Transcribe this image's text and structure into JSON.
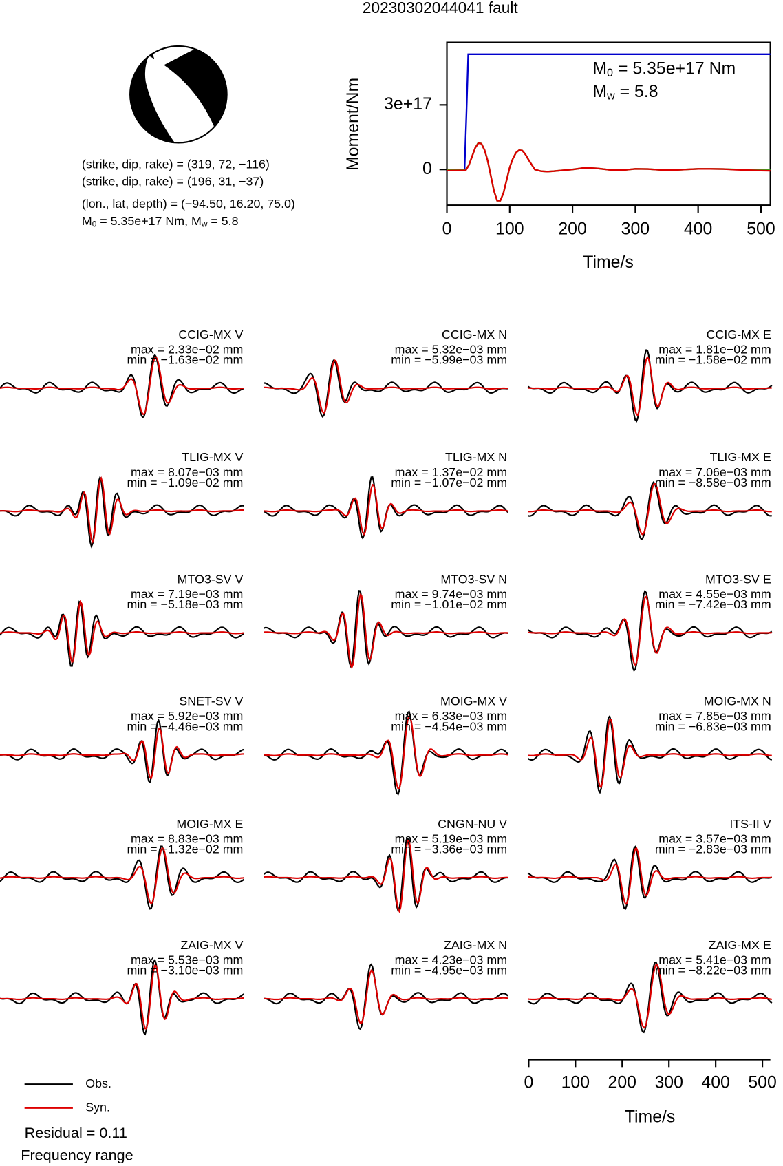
{
  "title": "20230302044041 fault",
  "mechanism": {
    "lines": [
      "(strike, dip, rake) = (319, 72, −116)",
      "(strike, dip, rake) = (196, 31, −37)",
      "(lon., lat, depth) = (−94.50, 16.20, 75.0)"
    ],
    "moment_line": {
      "m": "M",
      "m_sub": "0",
      "m_rest": " = 5.35e+17 Nm, ",
      "w": "M",
      "w_sub": "w",
      "w_rest": " = 5.8"
    }
  },
  "chart_data": {
    "type": "line",
    "ylabel": "Moment/Nm",
    "xlabel": "Time/s",
    "xlim": [
      0,
      515
    ],
    "ylim": [
      -1.66e+17,
      5.9e+17
    ],
    "xticks": [
      0,
      100,
      200,
      300,
      400,
      500
    ],
    "yticks": [
      0,
      {
        "value": 3e+17,
        "label": "3e+17"
      }
    ],
    "annotations": [
      {
        "main": "M",
        "sub": "0",
        "rest": " = 5.35e+17 Nm"
      },
      {
        "main": "M",
        "sub": "w",
        "rest": " = 5.8"
      }
    ],
    "series": [
      {
        "color": "#0000cc",
        "x": [
          0,
          28,
          31,
          34,
          515
        ],
        "values": [
          -5000000000000000.0,
          -5000000000000000.0,
          2.5e+17,
          5.35e+17,
          5.35e+17
        ]
      },
      {
        "color": "#22bb22",
        "x": [
          0,
          30,
          35,
          40,
          45,
          50,
          55,
          60,
          65,
          70,
          75,
          80,
          85,
          90,
          95,
          100,
          105,
          110,
          115,
          120,
          125,
          130,
          140,
          150,
          160,
          170,
          180,
          200,
          220,
          240,
          260,
          280,
          300,
          320,
          340,
          360,
          380,
          400,
          420,
          440,
          460,
          480,
          500,
          515
        ],
        "values": [
          0,
          0,
          2e+16,
          6e+16,
          1e+17,
          1.24e+17,
          1.2e+17,
          9e+16,
          4e+16,
          -3e+16,
          -1e+17,
          -1.45e+17,
          -1.45e+17,
          -1.1e+17,
          -5e+16,
          1e+16,
          5e+16,
          7.8e+16,
          9e+16,
          8.8e+16,
          7e+16,
          4.5e+16,
          0,
          -8000000000000000.0,
          -1e+16,
          -8000000000000000.0,
          -5000000000000000.0,
          0,
          8000000000000000.0,
          5000000000000000.0,
          -2000000000000000.0,
          -3000000000000000.0,
          3000000000000000.0,
          2000000000000000.0,
          -2000000000000000.0,
          -3000000000000000.0,
          0,
          3000000000000000.0,
          3000000000000000.0,
          2000000000000000.0,
          0,
          0,
          0,
          0
        ]
      },
      {
        "color": "#dd0000",
        "x": [
          0,
          30,
          35,
          40,
          45,
          50,
          55,
          60,
          65,
          70,
          75,
          80,
          85,
          90,
          95,
          100,
          105,
          110,
          115,
          120,
          125,
          130,
          140,
          150,
          160,
          170,
          180,
          200,
          220,
          240,
          260,
          280,
          300,
          320,
          340,
          360,
          380,
          400,
          420,
          440,
          460,
          480,
          500,
          515
        ],
        "values": [
          -5000000000000000.0,
          -4000000000000000.0,
          2e+16,
          6e+16,
          1e+17,
          1.22e+17,
          1.2e+17,
          9e+16,
          4e+16,
          -3e+16,
          -1e+17,
          -1.45e+17,
          -1.45e+17,
          -1.1e+17,
          -5e+16,
          1e+16,
          5e+16,
          7.8e+16,
          9e+16,
          8.8e+16,
          7e+16,
          4.5e+16,
          0,
          -8000000000000000.0,
          -1e+16,
          -8000000000000000.0,
          -5000000000000000.0,
          0,
          8000000000000000.0,
          5000000000000000.0,
          -2000000000000000.0,
          -3000000000000000.0,
          3000000000000000.0,
          2000000000000000.0,
          -2000000000000000.0,
          -3000000000000000.0,
          0,
          3000000000000000.0,
          3000000000000000.0,
          2000000000000000.0,
          -1000000000000000.0,
          -3000000000000000.0,
          -5000000000000000.0,
          -6000000000000000.0
        ]
      }
    ]
  },
  "panels": [
    {
      "station": "CCIG-MX V",
      "max": "max = 2.33e−02 mm",
      "min": "min = −1.63e−02 mm"
    },
    {
      "station": "CCIG-MX N",
      "max": "max = 5.32e−03 mm",
      "min": "min = −5.99e−03 mm"
    },
    {
      "station": "CCIG-MX E",
      "max": "max = 1.81e−02 mm",
      "min": "min = −1.58e−02 mm"
    },
    {
      "station": "TLIG-MX V",
      "max": "max = 8.07e−03 mm",
      "min": "min = −1.09e−02 mm"
    },
    {
      "station": "TLIG-MX N",
      "max": "max = 1.37e−02 mm",
      "min": "min = −1.07e−02 mm"
    },
    {
      "station": "TLIG-MX E",
      "max": "max = 7.06e−03 mm",
      "min": "min = −8.58e−03 mm"
    },
    {
      "station": "MTO3-SV V",
      "max": "max = 7.19e−03 mm",
      "min": "min = −5.18e−03 mm"
    },
    {
      "station": "MTO3-SV N",
      "max": "max = 9.74e−03 mm",
      "min": "min = −1.01e−02 mm"
    },
    {
      "station": "MTO3-SV E",
      "max": "max = 4.55e−03 mm",
      "min": "min = −7.42e−03 mm"
    },
    {
      "station": "SNET-SV V",
      "max": "max = 5.92e−03 mm",
      "min": "min = −4.46e−03 mm"
    },
    {
      "station": "MOIG-MX V",
      "max": "max = 6.33e−03 mm",
      "min": "min = −4.54e−03 mm"
    },
    {
      "station": "MOIG-MX N",
      "max": "max = 7.85e−03 mm",
      "min": "min = −6.83e−03 mm"
    },
    {
      "station": "MOIG-MX E",
      "max": "max = 8.83e−03 mm",
      "min": "min = −1.32e−02 mm"
    },
    {
      "station": "CNGN-NU V",
      "max": "max = 5.19e−03 mm",
      "min": "min = −3.36e−03 mm"
    },
    {
      "station": "ITS-II V",
      "max": "max = 3.57e−03 mm",
      "min": "min = −2.83e−03 mm"
    },
    {
      "station": "ZAIG-MX V",
      "max": "max = 5.53e−03 mm",
      "min": "min = −3.10e−03 mm"
    },
    {
      "station": "ZAIG-MX N",
      "max": "max = 4.23e−03 mm",
      "min": "min = −4.95e−03 mm"
    },
    {
      "station": "ZAIG-MX E",
      "max": "max = 5.41e−03 mm",
      "min": "min = −8.22e−03 mm"
    }
  ],
  "time_axis": {
    "xlim": [
      0,
      517
    ],
    "xticks": [
      0,
      100,
      200,
      300,
      400,
      500
    ],
    "xlabel": "Time/s"
  },
  "legend": {
    "obs": "Obs.",
    "syn": "Syn.",
    "residual": "Residual = 0.11",
    "frequency": "Frequency range"
  }
}
